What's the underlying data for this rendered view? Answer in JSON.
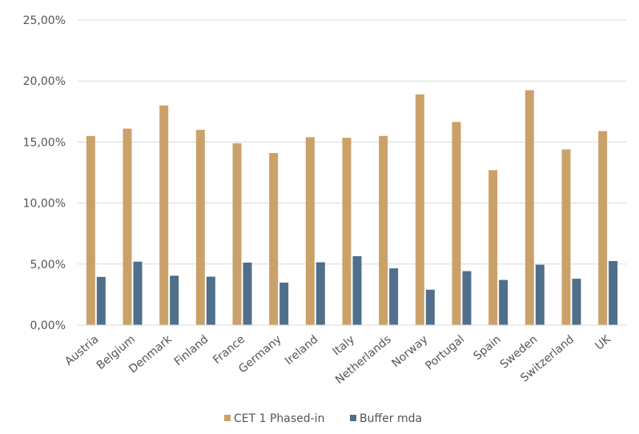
{
  "chart_data": {
    "type": "bar",
    "categories": [
      "Austria",
      "Belgium",
      "Denmark",
      "Finland",
      "France",
      "Germany",
      "Ireland",
      "Italy",
      "Netherlands",
      "Norway",
      "Portugal",
      "Spain",
      "Sweden",
      "Switzerland",
      "UK"
    ],
    "series": [
      {
        "name": "CET 1 Phased-in",
        "color": "#CBA16A",
        "values": [
          15.5,
          16.1,
          18.0,
          16.0,
          14.9,
          14.1,
          15.4,
          15.35,
          15.5,
          18.9,
          16.65,
          12.7,
          19.25,
          14.4,
          15.9
        ]
      },
      {
        "name": "Buffer mda",
        "color": "#4F6F8A",
        "values": [
          3.95,
          5.2,
          4.05,
          3.97,
          5.12,
          3.48,
          5.15,
          5.65,
          4.65,
          2.9,
          4.42,
          3.7,
          4.95,
          3.8,
          5.25
        ]
      }
    ],
    "yticks": [
      "0,00%",
      "5,00%",
      "10,00%",
      "15,00%",
      "20,00%",
      "25,00%"
    ],
    "ylim": [
      0,
      25
    ],
    "grid": true,
    "legend": "bottom"
  }
}
